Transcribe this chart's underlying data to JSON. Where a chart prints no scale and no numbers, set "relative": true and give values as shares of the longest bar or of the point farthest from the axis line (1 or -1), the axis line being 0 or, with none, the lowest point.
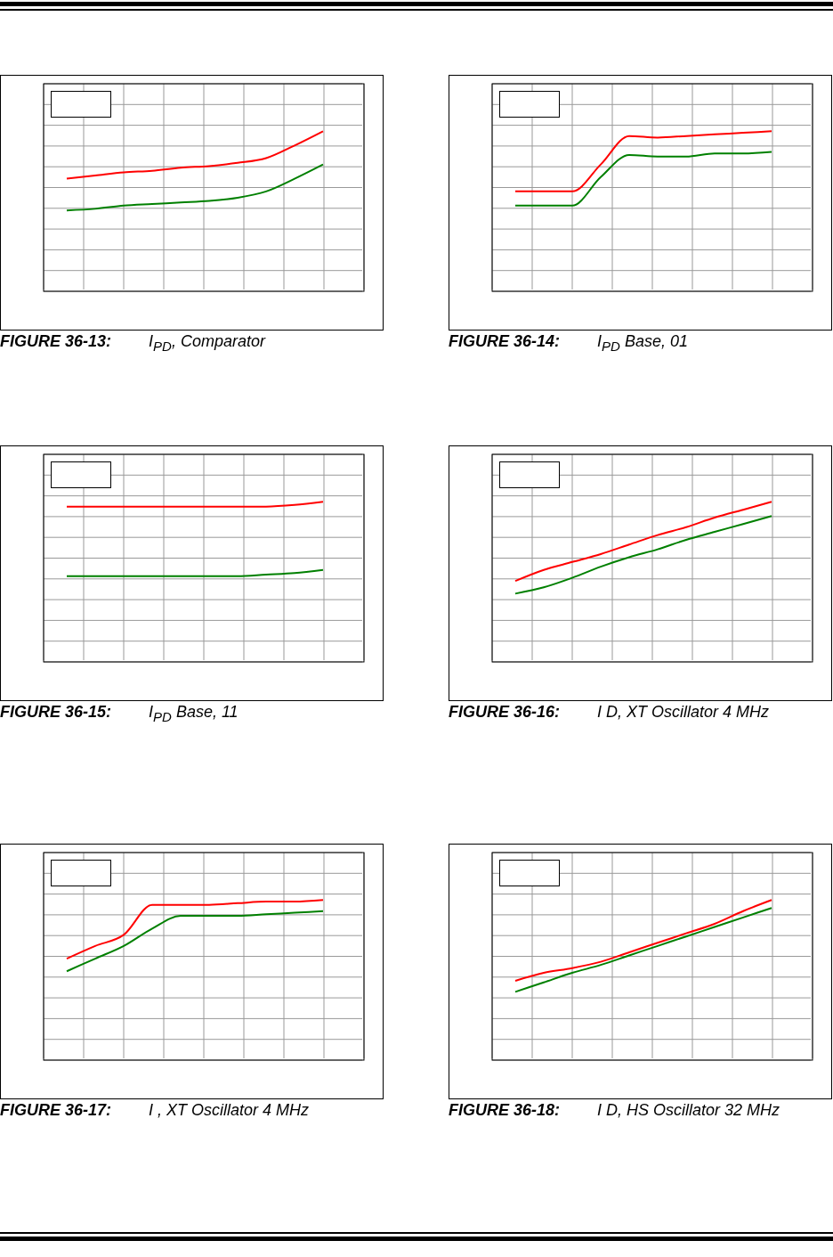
{
  "chart_data": [
    {
      "type": "line",
      "title": "FIGURE 36-13: I$_{PD}$, Comparator",
      "categories": [
        null,
        null,
        null,
        null,
        null,
        null,
        null,
        null,
        null,
        null
      ],
      "relative": true,
      "grid": true,
      "series": [
        {
          "color": "#ff0000",
          "values": [
            0.7,
            0.72,
            0.74,
            0.75,
            0.77,
            0.78,
            0.8,
            0.83,
            0.91,
            1
          ]
        },
        {
          "color": "#008000",
          "values": [
            0.5,
            0.51,
            0.53,
            0.54,
            0.55,
            0.56,
            0.58,
            0.62,
            0.7,
            0.79
          ]
        }
      ]
    },
    {
      "type": "line",
      "title": "FIGURE 36-14: I$_{PD}$ Base, 01",
      "categories": [
        null,
        null,
        null,
        null,
        null,
        null,
        null,
        null,
        null,
        null
      ],
      "relative": true,
      "grid": true,
      "series": [
        {
          "color": "#ff0000",
          "values": [
            0.62,
            0.62,
            0.62,
            0.79,
            0.97,
            0.96,
            0.97,
            0.98,
            0.99,
            1
          ]
        },
        {
          "color": "#008000",
          "values": [
            0.53,
            0.53,
            0.53,
            0.71,
            0.85,
            0.84,
            0.84,
            0.86,
            0.86,
            0.87
          ]
        }
      ]
    },
    {
      "type": "line",
      "title": "FIGURE 36-15: I$_{PD}$ Base, 11",
      "categories": [
        null,
        null,
        null,
        null,
        null,
        null,
        null,
        null,
        null,
        null
      ],
      "relative": true,
      "grid": true,
      "series": [
        {
          "color": "#ff0000",
          "values": [
            0.97,
            0.97,
            0.97,
            0.97,
            0.97,
            0.97,
            0.97,
            0.97,
            0.98,
            1
          ]
        },
        {
          "color": "#008000",
          "values": [
            0.53,
            0.53,
            0.53,
            0.53,
            0.53,
            0.53,
            0.53,
            0.54,
            0.55,
            0.57
          ]
        }
      ]
    },
    {
      "type": "line",
      "title": "FIGURE 36-16: I D, XT Oscillator 4 MHz",
      "categories": [
        null,
        null,
        null,
        null,
        null,
        null,
        null,
        null,
        null,
        null
      ],
      "relative": true,
      "grid": true,
      "series": [
        {
          "color": "#ff0000",
          "values": [
            0.5,
            0.57,
            0.62,
            0.67,
            0.73,
            0.79,
            0.84,
            0.9,
            0.95,
            1
          ]
        },
        {
          "color": "#008000",
          "values": [
            0.42,
            0.46,
            0.52,
            0.59,
            0.65,
            0.7,
            0.76,
            0.81,
            0.86,
            0.91
          ]
        }
      ]
    },
    {
      "type": "line",
      "title": "FIGURE 36-17: I , XT Oscillator 4 MHz",
      "categories": [
        null,
        null,
        null,
        null,
        null,
        null,
        null,
        null,
        null,
        null
      ],
      "relative": true,
      "grid": true,
      "series": [
        {
          "color": "#ff0000",
          "values": [
            0.63,
            0.71,
            0.78,
            0.97,
            0.97,
            0.97,
            0.98,
            0.99,
            0.99,
            1
          ]
        },
        {
          "color": "#008000",
          "values": [
            0.55,
            0.63,
            0.71,
            0.82,
            0.9,
            0.9,
            0.9,
            0.91,
            0.92,
            0.93
          ]
        }
      ]
    },
    {
      "type": "line",
      "title": "FIGURE 36-18: I D, HS Oscillator 32 MHz",
      "categories": [
        null,
        null,
        null,
        null,
        null,
        null,
        null,
        null,
        null,
        null
      ],
      "relative": true,
      "grid": true,
      "series": [
        {
          "color": "#ff0000",
          "values": [
            0.49,
            0.54,
            0.57,
            0.61,
            0.67,
            0.73,
            0.79,
            0.85,
            0.93,
            1
          ]
        },
        {
          "color": "#008000",
          "values": [
            0.42,
            0.48,
            0.54,
            0.59,
            0.65,
            0.71,
            0.77,
            0.83,
            0.89,
            0.95
          ]
        }
      ]
    }
  ]
}
